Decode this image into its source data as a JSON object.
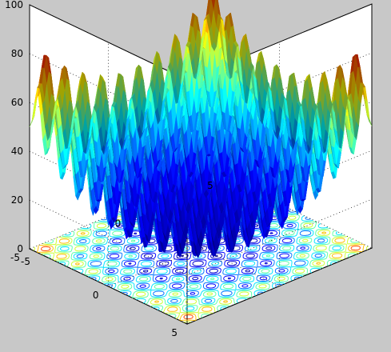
{
  "window": {
    "background": "#c8c8c8"
  },
  "chart_data": {
    "type": "surface",
    "plot_kind": "surfc",
    "title": "",
    "xlabel": "",
    "ylabel": "",
    "zlabel": "",
    "function": "z = 20 + x^2 + y^2 - 10*(cos(2*pi*x) + cos(2*pi*y))",
    "xlim": [
      -5,
      5
    ],
    "ylim": [
      -5,
      5
    ],
    "zlim": [
      0,
      100
    ],
    "x_ticks": [
      {
        "value": -5,
        "label": "-5"
      },
      {
        "value": 0,
        "label": "0"
      },
      {
        "value": 5,
        "label": "5"
      }
    ],
    "y_ticks": [
      {
        "value": -5,
        "label": "-5"
      },
      {
        "value": 0,
        "label": "0"
      },
      {
        "value": 5,
        "label": "5"
      }
    ],
    "z_ticks": [
      {
        "value": 0,
        "label": "0"
      },
      {
        "value": 20,
        "label": "20"
      },
      {
        "value": 40,
        "label": "40"
      },
      {
        "value": 60,
        "label": "60"
      },
      {
        "value": 80,
        "label": "80"
      },
      {
        "value": 100,
        "label": "100"
      }
    ],
    "grid": true,
    "box": true,
    "contour_on_floor": true,
    "colormap": "jet",
    "colormap_stops": [
      "#00008f",
      "#0000ff",
      "#00ffff",
      "#ffff00",
      "#ff0000",
      "#800000"
    ],
    "axes_background": "#ffffff",
    "view": {
      "azimuth": -37.5,
      "elevation": 30
    }
  }
}
